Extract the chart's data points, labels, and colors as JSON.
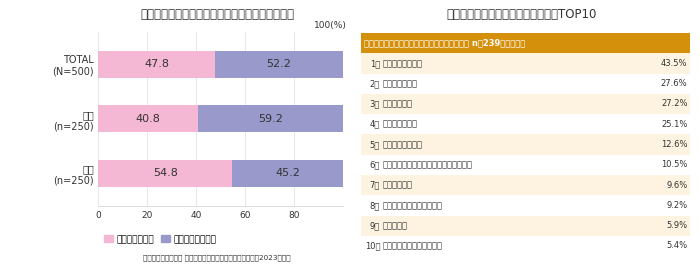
{
  "left_title": "洗面室・脱衣所を快適にする工夫有無｜男女比較",
  "bar_categories": [
    "TOTAL\n(N=500)",
    "男性\n(n=250)",
    "女性\n(n=250)"
  ],
  "values_yes": [
    47.8,
    40.8,
    54.8
  ],
  "values_no": [
    52.2,
    59.2,
    45.2
  ],
  "color_yes": "#f4b8d4",
  "color_no": "#9999cc",
  "legend_yes": "工夫をしている",
  "legend_no": "工夫をしていない",
  "xticks": [
    0,
    20,
    40,
    60,
    80,
    100
  ],
  "right_title": "洗面室・脱衣所を快適にする工夫　TOP10",
  "table_header": "洗面室・脱衣所を快適にする工夫をしている人 n＝239・複数回答",
  "header_bg": "#d4900a",
  "header_text_color": "#ffffff",
  "row_bg_odd": "#fdf3e0",
  "row_bg_even": "#ffffff",
  "ranks": [
    "1位",
    "2位",
    "3位",
    "4位",
    "5位",
    "6位",
    "7位",
    "8位",
    "9位",
    "10位"
  ],
  "items": [
    "こまめに掃除する",
    "換気扇をつける",
    "ものを減らす",
    "収納を整理する",
    "冷暖房機器を置く",
    "ランドリー（洗濯）スペースと連携する",
    "収納を増やす",
    "キャスター付き収納を使う",
    "椅子を置く",
    "空間やモノの色味を揃える"
  ],
  "percentages": [
    "43.5%",
    "27.6%",
    "27.2%",
    "25.1%",
    "12.6%",
    "10.5%",
    "9.6%",
    "9.2%",
    "5.9%",
    "5.4%"
  ],
  "footer": "積水ハウス株式会社 住生活研究所「入浴に関する調査　（2023年）」",
  "bg_color": "#ffffff",
  "axis_color": "#cccccc",
  "text_color": "#333333",
  "grid_color": "#dddddd",
  "title_fontsize": 8.5,
  "bar_fontsize": 8,
  "tick_fontsize": 6.5,
  "label_fontsize": 7,
  "table_fontsize": 6,
  "header_fontsize": 6
}
